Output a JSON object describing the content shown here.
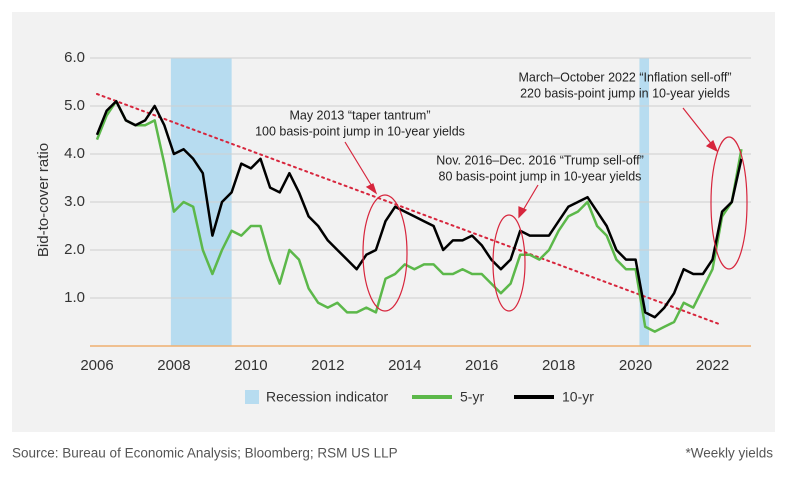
{
  "chart_data": {
    "type": "line",
    "y_label": "Bid-to-cover ratio",
    "source": "Source: Bureau of Economic Analysis; Bloomberg; RSM US LLP",
    "note": "*Weekly yields",
    "x": [
      2006,
      2006.25,
      2006.5,
      2006.75,
      2007,
      2007.25,
      2007.5,
      2007.75,
      2008,
      2008.25,
      2008.5,
      2008.75,
      2009,
      2009.25,
      2009.5,
      2009.75,
      2010,
      2010.25,
      2010.5,
      2010.75,
      2011,
      2011.25,
      2011.5,
      2011.75,
      2012,
      2012.25,
      2012.5,
      2012.75,
      2013,
      2013.25,
      2013.5,
      2013.75,
      2014,
      2014.25,
      2014.5,
      2014.75,
      2015,
      2015.25,
      2015.5,
      2015.75,
      2016,
      2016.25,
      2016.5,
      2016.75,
      2017,
      2017.25,
      2017.5,
      2017.75,
      2018,
      2018.25,
      2018.5,
      2018.75,
      2019,
      2019.25,
      2019.5,
      2019.75,
      2020,
      2020.25,
      2020.5,
      2020.75,
      2021,
      2021.25,
      2021.5,
      2021.75,
      2022,
      2022.25,
      2022.5,
      2022.75
    ],
    "series": [
      {
        "name": "5-yr",
        "color": "#5cb84a",
        "values": [
          4.3,
          4.8,
          5.1,
          4.7,
          4.6,
          4.6,
          4.7,
          3.8,
          2.8,
          3.0,
          2.9,
          2.0,
          1.5,
          2.0,
          2.4,
          2.3,
          2.5,
          2.5,
          1.8,
          1.3,
          2.0,
          1.8,
          1.2,
          0.9,
          0.8,
          0.9,
          0.7,
          0.7,
          0.8,
          0.7,
          1.4,
          1.5,
          1.7,
          1.6,
          1.7,
          1.7,
          1.5,
          1.5,
          1.6,
          1.5,
          1.5,
          1.3,
          1.1,
          1.3,
          1.9,
          1.9,
          1.8,
          2.0,
          2.4,
          2.7,
          2.8,
          3.0,
          2.5,
          2.3,
          1.8,
          1.6,
          1.6,
          0.4,
          0.3,
          0.4,
          0.5,
          0.9,
          0.8,
          1.2,
          1.6,
          2.7,
          3.0,
          4.1
        ]
      },
      {
        "name": "10-yr",
        "color": "#000000",
        "values": [
          4.4,
          4.9,
          5.1,
          4.7,
          4.6,
          4.7,
          5.0,
          4.6,
          4.0,
          4.1,
          3.9,
          3.6,
          2.3,
          3.0,
          3.2,
          3.8,
          3.7,
          3.9,
          3.3,
          3.2,
          3.6,
          3.2,
          2.7,
          2.5,
          2.2,
          2.0,
          1.8,
          1.6,
          1.9,
          2.0,
          2.6,
          2.9,
          2.8,
          2.7,
          2.6,
          2.5,
          2.0,
          2.2,
          2.2,
          2.3,
          2.1,
          1.8,
          1.6,
          1.8,
          2.4,
          2.3,
          2.3,
          2.3,
          2.6,
          2.9,
          3.0,
          3.1,
          2.8,
          2.5,
          2.0,
          1.8,
          1.8,
          0.7,
          0.6,
          0.8,
          1.1,
          1.6,
          1.5,
          1.5,
          1.8,
          2.8,
          3.0,
          3.9
        ]
      }
    ],
    "shaded_regions": {
      "name": "Recession indicator",
      "color": "#b7dcf0",
      "ranges": [
        [
          2007.92,
          2009.5
        ],
        [
          2020.1,
          2020.35
        ]
      ]
    },
    "trend_line": {
      "color": "#d7263d",
      "x": [
        2006,
        2022.2
      ],
      "y": [
        5.25,
        0.45
      ]
    },
    "annotations": [
      {
        "lines": [
          "May 2013 “taper tantrum”",
          "100 basis-point jump in 10-year yields"
        ]
      },
      {
        "lines": [
          "Nov. 2016–Dec. 2016 “Trump sell-off”",
          "80 basis-point jump in 10-year yields"
        ]
      },
      {
        "lines": [
          "March–October 2022 “Inflation sell-off”",
          "220 basis-point jump in 10-year yields"
        ]
      }
    ],
    "xlim": [
      2006,
      2023
    ],
    "ylim": [
      0,
      6
    ],
    "xticks": [
      2006,
      2008,
      2010,
      2012,
      2014,
      2016,
      2018,
      2020,
      2022
    ],
    "yticks": [
      {
        "value": 1,
        "label": "1.0"
      },
      {
        "value": 2,
        "label": "2.0"
      },
      {
        "value": 3,
        "label": "3.0"
      },
      {
        "value": 4,
        "label": "4.0"
      },
      {
        "value": 5,
        "label": "5.0"
      },
      {
        "value": 6,
        "label": "6.0"
      }
    ],
    "grid": true
  }
}
